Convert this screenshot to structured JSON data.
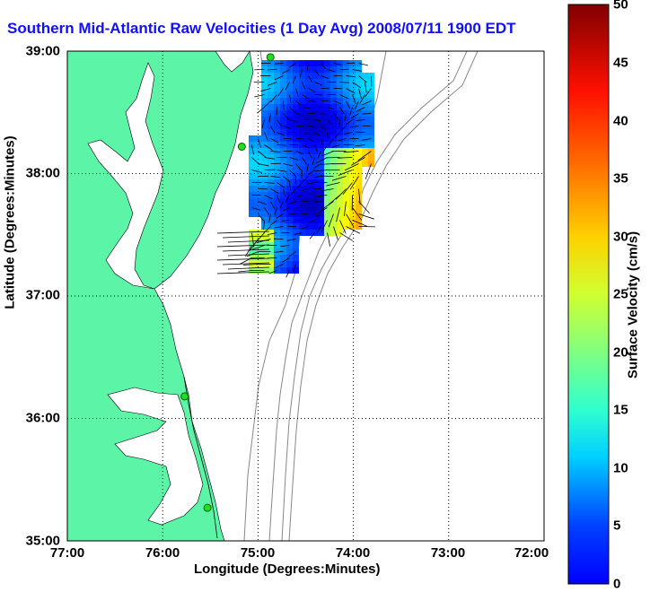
{
  "title": "Southern Mid-Atlantic Raw Velocities (1 Day Avg) 2008/07/11 1900 EDT",
  "x_axis": {
    "label": "Longitude (Degrees:Minutes)",
    "ticks": [
      "77:00",
      "76:00",
      "75:00",
      "74:00",
      "73:00",
      "72:00"
    ]
  },
  "y_axis": {
    "label": "Latitude (Degrees:Minutes)",
    "ticks": [
      "39:00",
      "38:00",
      "37:00",
      "36:00",
      "35:00"
    ]
  },
  "colorbar": {
    "label": "Surface Velocity (cm/s)",
    "ticks": [
      "50",
      "45",
      "40",
      "35",
      "30",
      "25",
      "20",
      "15",
      "10",
      "5",
      "0"
    ],
    "min": 0,
    "max": 50,
    "colormap": "jet"
  },
  "colors": {
    "land": "#5cf5a8",
    "title": "#1010ff",
    "station": "#22dd22"
  },
  "map_extent": {
    "lon_range": [
      -77,
      -72
    ],
    "lat_range": [
      35,
      39
    ]
  },
  "stations": [
    {
      "lon": -74.87,
      "lat": 38.95
    },
    {
      "lon": -75.17,
      "lat": 38.22
    },
    {
      "lon": -75.77,
      "lat": 36.18
    },
    {
      "lon": -75.53,
      "lat": 35.27
    }
  ]
}
